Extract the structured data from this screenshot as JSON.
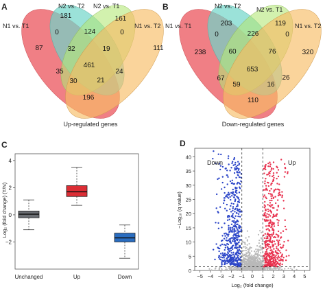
{
  "panel_letters": [
    "A",
    "B",
    "C",
    "D"
  ],
  "colors": {
    "n1t1": "#e8434c",
    "n2t2": "#58cfc0",
    "n2t1": "#a7e35f",
    "n1t2": "#f6b04a",
    "unchanged_box": "#6b6e73",
    "up_box": "#dc2e35",
    "down_box": "#2a6dc0",
    "volcano_down": "#2c46c8",
    "volcano_up": "#e8324f",
    "volcano_ns": "#b9b9b9"
  },
  "panel_a": {
    "labels": {
      "n1t1": "N1 vs. T1",
      "n2t2": "N2 vs. T2",
      "n2t1": "N2 vs. T1",
      "n1t2": "N1 vs. T2"
    },
    "caption": "Up-regulated genes",
    "counts": {
      "only_n1t1": "87",
      "only_n2t2": "181",
      "only_n2t1": "161",
      "only_n1t2": "111",
      "n2t2_n2t1": "124",
      "n1t1_n2t2": "0",
      "n2t1_n1t2": "0",
      "n1t1_n2t2_n2t1": "32",
      "n2t2_n2t1_n1t2": "19",
      "all": "461",
      "n1t1_n2t1": "35",
      "n2t2_n1t2": "24",
      "n1t1_n2t1_n1t2": "30",
      "n1t1_n2t2_n1t2": "21",
      "n1t1_n1t2": "196"
    }
  },
  "panel_b": {
    "labels": {
      "n1t1": "N1 vs. T1",
      "n2t2": "N2 vs. T2",
      "n2t1": "N2 vs. T1",
      "n1t2": "N1 vs. T2"
    },
    "caption": "Down-regulated genes",
    "counts": {
      "only_n1t1": "238",
      "only_n2t2": "203",
      "only_n2t1": "119",
      "only_n1t2": "320",
      "n2t2_n2t1": "226",
      "n1t1_n2t2": "0",
      "n2t1_n1t2": "0",
      "n1t1_n2t2_n2t1": "60",
      "n2t2_n2t1_n1t2": "76",
      "all": "653",
      "n1t1_n2t1": "67",
      "n2t2_n1t2": "26",
      "n1t1_n2t1_n1t2": "59",
      "n1t1_n2t2_n1t2": "16",
      "n1t1_n1t2": "110"
    }
  },
  "panel_c": {
    "ylabel": "Log₂ (fold change) (T/N)",
    "y_ticks": [
      "−2",
      "0",
      "2",
      "4"
    ],
    "categories": [
      "Unchanged",
      "Up",
      "Down"
    ]
  },
  "panel_d": {
    "ylabel": "−Log₁₀ (q value)",
    "xlabel": "Log₂ (fold change)",
    "label_down": "Down",
    "label_up": "Up",
    "x_ticks": [
      "−5",
      "−4",
      "−3",
      "−2",
      "−1",
      "0",
      "1",
      "2",
      "3",
      "4",
      "5"
    ],
    "y_ticks": [
      "0",
      "5",
      "10",
      "15",
      "20",
      "25",
      "30",
      "35",
      "40"
    ]
  },
  "chart_data": [
    {
      "type": "box",
      "categories": [
        "Unchanged",
        "Up",
        "Down"
      ],
      "ylim": [
        -4,
        4.5
      ],
      "boxes": [
        {
          "min": -1.1,
          "q1": -0.22,
          "median": 0.05,
          "q3": 0.28,
          "max": 1.1
        },
        {
          "min": 0.7,
          "q1": 1.35,
          "median": 1.7,
          "q3": 2.15,
          "max": 3.5
        },
        {
          "min": -3.2,
          "q1": -2.0,
          "median": -1.7,
          "q3": -1.35,
          "max": -0.75
        }
      ],
      "xlabel": "",
      "ylabel": "Log₂ (fold change) (T/N)"
    },
    {
      "type": "scatter",
      "xlim": [
        -5.5,
        5.5
      ],
      "ylim": [
        0,
        43
      ],
      "thresholds": {
        "x": [
          -1,
          1
        ],
        "y": 1.3
      },
      "series": [
        {
          "name": "Down",
          "x_range": [
            -4.6,
            -1
          ],
          "y_range": [
            1.3,
            42
          ]
        },
        {
          "name": "Up",
          "x_range": [
            1,
            4.8
          ],
          "y_range": [
            1.3,
            41
          ]
        }
      ],
      "xlabel": "Log₂ (fold change)",
      "ylabel": "−Log₁₀ (q value)"
    }
  ]
}
